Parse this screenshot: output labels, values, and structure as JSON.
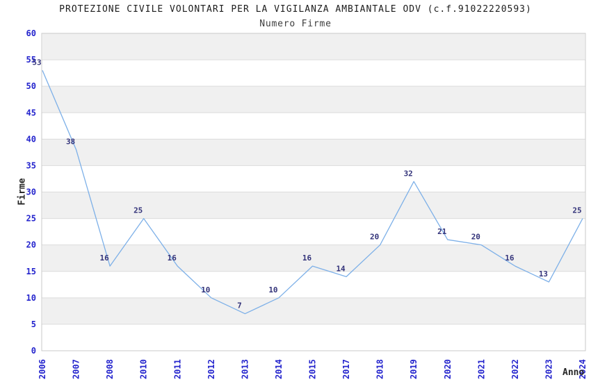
{
  "chart_data": {
    "type": "line",
    "title": "PROTEZIONE CIVILE VOLONTARI PER LA VIGILANZA AMBIANTALE ODV (c.f.91022220593)",
    "subtitle": "Numero Firme",
    "xlabel": "Anno",
    "ylabel": "Firme",
    "categories": [
      "2006",
      "2007",
      "2008",
      "2010",
      "2011",
      "2012",
      "2013",
      "2014",
      "2015",
      "2017",
      "2018",
      "2019",
      "2020",
      "2021",
      "2022",
      "2023",
      "2024"
    ],
    "values": [
      53,
      38,
      16,
      25,
      16,
      10,
      7,
      10,
      16,
      14,
      20,
      32,
      21,
      20,
      16,
      13,
      25
    ],
    "ylim": [
      0,
      60
    ],
    "ytick_step": 5,
    "yticks": [
      0,
      5,
      10,
      15,
      20,
      25,
      30,
      35,
      40,
      45,
      50,
      55,
      60
    ],
    "grid": "alternating-horizontal-bands",
    "legend": "none",
    "data_labels": "shown above each point",
    "colors": {
      "line": "#7db0e8",
      "tick_label": "#2424cd",
      "data_label": "#33337a",
      "band": "#f0f0f0",
      "gridline": "#dcdcdc",
      "border": "#c9c9c9",
      "title_text": "#1c1c1c",
      "axis_title_text": "#262626",
      "background": "#ffffff"
    }
  }
}
